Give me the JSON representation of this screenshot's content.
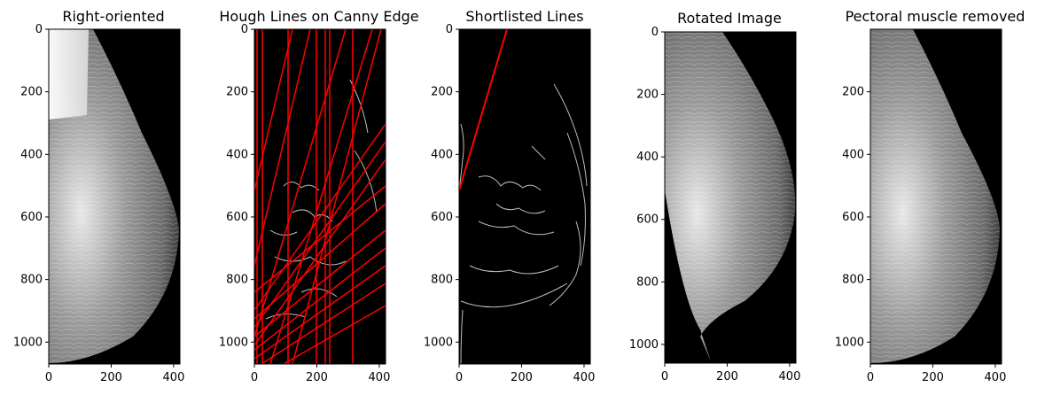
{
  "panels": [
    {
      "title": "Right-oriented",
      "xticks": [
        "0",
        "200",
        "400"
      ],
      "xtick_values": [
        0,
        200,
        400
      ],
      "yticks": [
        "0",
        "200",
        "400",
        "600",
        "800",
        "1000"
      ],
      "ytick_values": [
        0,
        200,
        400,
        600,
        800,
        1000
      ],
      "xlim": [
        0,
        420
      ],
      "ylim": [
        1070,
        0
      ],
      "image": "mammogram-right-oriented"
    },
    {
      "title": "Hough Lines on Canny Edge",
      "xticks": [
        "0",
        "200",
        "400"
      ],
      "xtick_values": [
        0,
        200,
        400
      ],
      "yticks": [
        "0",
        "200",
        "400",
        "600",
        "800",
        "1000"
      ],
      "ytick_values": [
        0,
        200,
        400,
        600,
        800,
        1000
      ],
      "xlim": [
        0,
        420
      ],
      "ylim": [
        1070,
        0
      ],
      "image": "canny-edges-with-hough-lines",
      "line_color": "#ff0000"
    },
    {
      "title": "Shortlisted Lines",
      "xticks": [
        "0",
        "200",
        "400"
      ],
      "xtick_values": [
        0,
        200,
        400
      ],
      "yticks": [
        "0",
        "200",
        "400",
        "600",
        "800",
        "1000"
      ],
      "ytick_values": [
        0,
        200,
        400,
        600,
        800,
        1000
      ],
      "xlim": [
        0,
        420
      ],
      "ylim": [
        1070,
        0
      ],
      "image": "canny-edges-with-shortlisted-line",
      "line_color": "#ff0000"
    },
    {
      "title": "Rotated Image",
      "xticks": [
        "0",
        "200",
        "400"
      ],
      "xtick_values": [
        0,
        200,
        400
      ],
      "yticks": [
        "0",
        "200",
        "400",
        "600",
        "800",
        "1000"
      ],
      "ytick_values": [
        0,
        200,
        400,
        600,
        800,
        1000
      ],
      "xlim": [
        0,
        420
      ],
      "ylim": [
        1060,
        0
      ],
      "image": "mammogram-rotated"
    },
    {
      "title": "Pectoral muscle removed",
      "xticks": [
        "0",
        "200",
        "400"
      ],
      "xtick_values": [
        0,
        200,
        400
      ],
      "yticks": [
        "200",
        "400",
        "600",
        "800",
        "1000"
      ],
      "ytick_values": [
        200,
        400,
        600,
        800,
        1000
      ],
      "xlim": [
        0,
        420
      ],
      "ylim": [
        1070,
        0
      ],
      "image": "mammogram-pectoral-removed"
    }
  ]
}
